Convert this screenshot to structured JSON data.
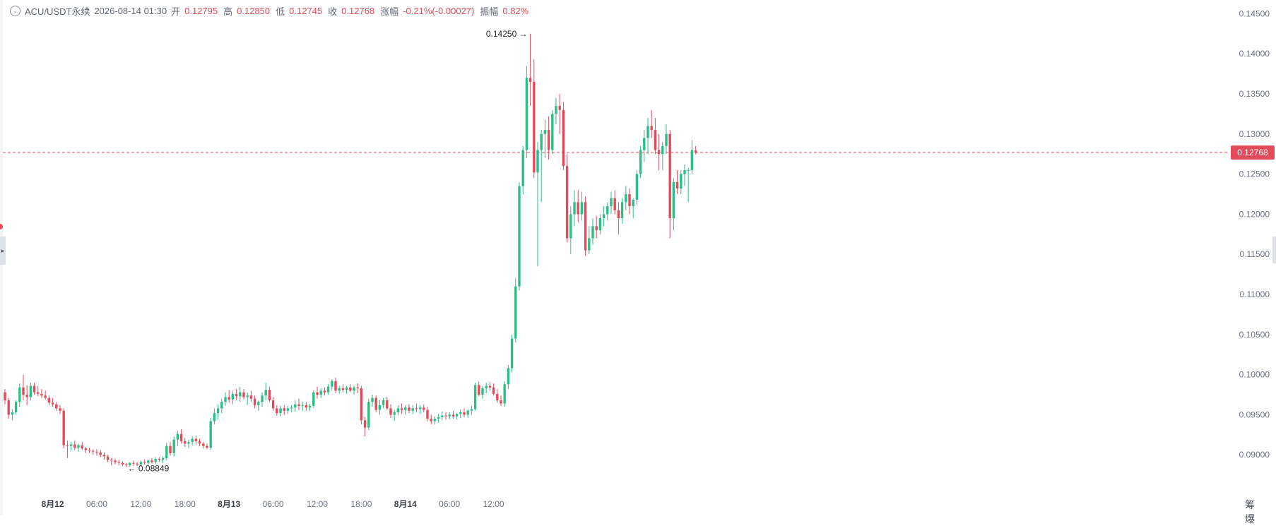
{
  "header": {
    "symbol": "ACU/USDT永续",
    "datetime": "2026-08-14 01:30",
    "open_label": "开",
    "open_value": "0.12795",
    "high_label": "高",
    "high_value": "0.12850",
    "low_label": "低",
    "low_value": "0.12745",
    "close_label": "收",
    "close_value": "0.12768",
    "change_label": "涨幅",
    "change_value": "-0.21%(-0.00027)",
    "amplitude_label": "振幅",
    "amplitude_value": "0.82%"
  },
  "corner": {
    "label": "筹 爆"
  },
  "colors": {
    "up": "#2ebd85",
    "down": "#e34b5b",
    "price_line": "#e34b5b",
    "axis_text": "#6b7280"
  },
  "chart_data": {
    "type": "candlestick",
    "interval": "30m",
    "ylim": [
      0.0865,
      0.146
    ],
    "y_ticks": [
      "0.09000",
      "0.09500",
      "0.10000",
      "0.10500",
      "0.11000",
      "0.11500",
      "0.12000",
      "0.12500",
      "0.13000",
      "0.13500",
      "0.14000",
      "0.14500"
    ],
    "x_ticks": [
      "8月12",
      "06:00",
      "12:00",
      "18:00",
      "8月13",
      "06:00",
      "12:00",
      "18:00",
      "8月14",
      "06:00",
      "12:00"
    ],
    "bold_ticks": [
      "8月12",
      "8月13",
      "8月14"
    ],
    "x_start": "2026-08-11 17:30",
    "last_price": "0.12768",
    "annotations": [
      {
        "text": "0.14250",
        "value": 0.1425,
        "type": "high"
      },
      {
        "text": "0.08849",
        "value": 0.08849,
        "type": "low"
      }
    ],
    "ohlc": [
      [
        0.0978,
        0.0982,
        0.0963,
        0.0968
      ],
      [
        0.0968,
        0.0971,
        0.0945,
        0.095
      ],
      [
        0.095,
        0.0957,
        0.0943,
        0.0953
      ],
      [
        0.0953,
        0.0968,
        0.095,
        0.0966
      ],
      [
        0.0966,
        0.0989,
        0.096,
        0.0984
      ],
      [
        0.0984,
        0.1,
        0.0968,
        0.0975
      ],
      [
        0.0975,
        0.0987,
        0.0962,
        0.0972
      ],
      [
        0.0972,
        0.099,
        0.0968,
        0.0986
      ],
      [
        0.0986,
        0.099,
        0.0975,
        0.0978
      ],
      [
        0.0978,
        0.0986,
        0.0973,
        0.0976
      ],
      [
        0.0976,
        0.0982,
        0.0971,
        0.0974
      ],
      [
        0.0974,
        0.098,
        0.0969,
        0.0971
      ],
      [
        0.0971,
        0.0974,
        0.0962,
        0.0965
      ],
      [
        0.0965,
        0.0971,
        0.096,
        0.0963
      ],
      [
        0.0963,
        0.0966,
        0.0955,
        0.0958
      ],
      [
        0.0958,
        0.0962,
        0.0951,
        0.0955
      ],
      [
        0.0955,
        0.0958,
        0.0908,
        0.0912
      ],
      [
        0.0912,
        0.0918,
        0.0896,
        0.0911
      ],
      [
        0.0911,
        0.0916,
        0.0905,
        0.0913
      ],
      [
        0.0913,
        0.0918,
        0.0906,
        0.0909
      ],
      [
        0.0909,
        0.0914,
        0.0904,
        0.0912
      ],
      [
        0.0912,
        0.0916,
        0.0906,
        0.0908
      ],
      [
        0.0908,
        0.091,
        0.0902,
        0.0906
      ],
      [
        0.0906,
        0.0909,
        0.0902,
        0.0905
      ],
      [
        0.0905,
        0.0907,
        0.09,
        0.0904
      ],
      [
        0.0904,
        0.0907,
        0.0899,
        0.0903
      ],
      [
        0.0903,
        0.0906,
        0.0897,
        0.09
      ],
      [
        0.09,
        0.0903,
        0.0894,
        0.0898
      ],
      [
        0.0898,
        0.09,
        0.0891,
        0.0894
      ],
      [
        0.0894,
        0.0896,
        0.0887,
        0.0893
      ],
      [
        0.0893,
        0.0895,
        0.0888,
        0.0891
      ],
      [
        0.0891,
        0.0894,
        0.0887,
        0.089
      ],
      [
        0.089,
        0.0892,
        0.0886,
        0.0888
      ],
      [
        0.0888,
        0.089,
        0.0885,
        0.0887
      ],
      [
        0.0887,
        0.0891,
        0.0885,
        0.089
      ],
      [
        0.089,
        0.0893,
        0.0886,
        0.0889
      ],
      [
        0.0889,
        0.0891,
        0.0886,
        0.0888
      ],
      [
        0.0888,
        0.0893,
        0.0885,
        0.0891
      ],
      [
        0.0891,
        0.0894,
        0.0888,
        0.089
      ],
      [
        0.089,
        0.0894,
        0.0887,
        0.0893
      ],
      [
        0.0893,
        0.0896,
        0.0889,
        0.0891
      ],
      [
        0.0891,
        0.0897,
        0.0889,
        0.0895
      ],
      [
        0.0895,
        0.0897,
        0.0891,
        0.0894
      ],
      [
        0.0894,
        0.0898,
        0.089,
        0.0896
      ],
      [
        0.0896,
        0.0915,
        0.0893,
        0.0911
      ],
      [
        0.0911,
        0.0916,
        0.0899,
        0.0902
      ],
      [
        0.0902,
        0.0923,
        0.0898,
        0.0919
      ],
      [
        0.0919,
        0.093,
        0.0911,
        0.0926
      ],
      [
        0.0926,
        0.0932,
        0.0914,
        0.0917
      ],
      [
        0.0917,
        0.0921,
        0.091,
        0.0914
      ],
      [
        0.0914,
        0.0919,
        0.0908,
        0.0916
      ],
      [
        0.0916,
        0.0923,
        0.0912,
        0.092
      ],
      [
        0.092,
        0.0924,
        0.0913,
        0.0917
      ],
      [
        0.0917,
        0.092,
        0.0911,
        0.0914
      ],
      [
        0.0914,
        0.0916,
        0.0908,
        0.0911
      ],
      [
        0.0911,
        0.0914,
        0.0907,
        0.0909
      ],
      [
        0.0909,
        0.0946,
        0.0906,
        0.0942
      ],
      [
        0.0942,
        0.0958,
        0.0938,
        0.0952
      ],
      [
        0.0952,
        0.0963,
        0.0944,
        0.0958
      ],
      [
        0.0958,
        0.097,
        0.0952,
        0.0966
      ],
      [
        0.0966,
        0.0978,
        0.0961,
        0.0972
      ],
      [
        0.0972,
        0.0981,
        0.0965,
        0.0969
      ],
      [
        0.0969,
        0.098,
        0.0963,
        0.0976
      ],
      [
        0.0976,
        0.0982,
        0.0968,
        0.0973
      ],
      [
        0.0973,
        0.0985,
        0.0966,
        0.0978
      ],
      [
        0.0978,
        0.0982,
        0.0969,
        0.0972
      ],
      [
        0.0972,
        0.0978,
        0.0962,
        0.0974
      ],
      [
        0.0974,
        0.098,
        0.0966,
        0.097
      ],
      [
        0.097,
        0.0974,
        0.0958,
        0.0962
      ],
      [
        0.0962,
        0.0968,
        0.0955,
        0.0966
      ],
      [
        0.0966,
        0.0978,
        0.096,
        0.0974
      ],
      [
        0.0974,
        0.099,
        0.0968,
        0.0981
      ],
      [
        0.0981,
        0.0985,
        0.0966,
        0.0968
      ],
      [
        0.0968,
        0.0972,
        0.0955,
        0.0958
      ],
      [
        0.0958,
        0.0962,
        0.0949,
        0.0952
      ],
      [
        0.0952,
        0.0961,
        0.0948,
        0.0958
      ],
      [
        0.0958,
        0.0962,
        0.095,
        0.0955
      ],
      [
        0.0955,
        0.0961,
        0.0951,
        0.0958
      ],
      [
        0.0958,
        0.0962,
        0.0953,
        0.0959
      ],
      [
        0.0959,
        0.0968,
        0.0954,
        0.0963
      ],
      [
        0.0963,
        0.097,
        0.0956,
        0.0961
      ],
      [
        0.0961,
        0.0966,
        0.0955,
        0.0962
      ],
      [
        0.0962,
        0.0966,
        0.0955,
        0.0959
      ],
      [
        0.0959,
        0.0963,
        0.0955,
        0.0961
      ],
      [
        0.0961,
        0.098,
        0.0958,
        0.0978
      ],
      [
        0.0978,
        0.0985,
        0.097,
        0.0975
      ],
      [
        0.0975,
        0.0983,
        0.0971,
        0.098
      ],
      [
        0.098,
        0.0984,
        0.0974,
        0.0978
      ],
      [
        0.0978,
        0.0988,
        0.0975,
        0.0985
      ],
      [
        0.0985,
        0.0994,
        0.098,
        0.0992
      ],
      [
        0.0992,
        0.0996,
        0.0977,
        0.098
      ],
      [
        0.098,
        0.0986,
        0.0976,
        0.0983
      ],
      [
        0.0983,
        0.0988,
        0.0978,
        0.0981
      ],
      [
        0.0981,
        0.0986,
        0.0976,
        0.0984
      ],
      [
        0.0984,
        0.0988,
        0.0978,
        0.098
      ],
      [
        0.098,
        0.0986,
        0.0975,
        0.0984
      ],
      [
        0.0984,
        0.0989,
        0.0977,
        0.0983
      ],
      [
        0.0983,
        0.0986,
        0.0938,
        0.0943
      ],
      [
        0.0943,
        0.0947,
        0.0923,
        0.0934
      ],
      [
        0.0934,
        0.097,
        0.0931,
        0.0966
      ],
      [
        0.0966,
        0.0975,
        0.096,
        0.0971
      ],
      [
        0.0971,
        0.0974,
        0.0953,
        0.0956
      ],
      [
        0.0956,
        0.0968,
        0.095,
        0.0962
      ],
      [
        0.0962,
        0.0971,
        0.0958,
        0.0968
      ],
      [
        0.0968,
        0.0972,
        0.0956,
        0.0958
      ],
      [
        0.0958,
        0.0963,
        0.0946,
        0.095
      ],
      [
        0.095,
        0.0956,
        0.0942,
        0.0953
      ],
      [
        0.0953,
        0.0962,
        0.0949,
        0.0958
      ],
      [
        0.0958,
        0.0964,
        0.0951,
        0.0956
      ],
      [
        0.0956,
        0.0962,
        0.095,
        0.0959
      ],
      [
        0.0959,
        0.0963,
        0.0952,
        0.0955
      ],
      [
        0.0955,
        0.0962,
        0.0951,
        0.0958
      ],
      [
        0.0958,
        0.0964,
        0.0953,
        0.0957
      ],
      [
        0.0957,
        0.0962,
        0.0951,
        0.0959
      ],
      [
        0.0959,
        0.0963,
        0.0953,
        0.0956
      ],
      [
        0.0956,
        0.096,
        0.0942,
        0.0945
      ],
      [
        0.0945,
        0.095,
        0.0938,
        0.0942
      ],
      [
        0.0942,
        0.0948,
        0.0938,
        0.0945
      ],
      [
        0.0945,
        0.0951,
        0.094,
        0.0947
      ],
      [
        0.0947,
        0.0954,
        0.0943,
        0.0949
      ],
      [
        0.0949,
        0.0953,
        0.0944,
        0.0948
      ],
      [
        0.0948,
        0.0953,
        0.0944,
        0.095
      ],
      [
        0.095,
        0.0955,
        0.0945,
        0.0948
      ],
      [
        0.0948,
        0.0952,
        0.0944,
        0.0951
      ],
      [
        0.0951,
        0.0957,
        0.0946,
        0.0953
      ],
      [
        0.0953,
        0.0958,
        0.0947,
        0.095
      ],
      [
        0.095,
        0.0957,
        0.0946,
        0.0955
      ],
      [
        0.0955,
        0.0961,
        0.095,
        0.0957
      ],
      [
        0.0957,
        0.099,
        0.0955,
        0.0987
      ],
      [
        0.0987,
        0.0991,
        0.0973,
        0.0975
      ],
      [
        0.0975,
        0.0986,
        0.097,
        0.0983
      ],
      [
        0.0983,
        0.099,
        0.0977,
        0.0986
      ],
      [
        0.0986,
        0.0991,
        0.098,
        0.0984
      ],
      [
        0.0984,
        0.0989,
        0.0974,
        0.0976
      ],
      [
        0.0976,
        0.0982,
        0.0965,
        0.0968
      ],
      [
        0.0968,
        0.0974,
        0.0961,
        0.0964
      ],
      [
        0.0964,
        0.0992,
        0.096,
        0.0988
      ],
      [
        0.0988,
        0.1012,
        0.0982,
        0.1008
      ],
      [
        0.1008,
        0.105,
        0.1003,
        0.1045
      ],
      [
        0.1045,
        0.112,
        0.104,
        0.111
      ],
      [
        0.111,
        0.124,
        0.1105,
        0.1235
      ],
      [
        0.1235,
        0.1285,
        0.1225,
        0.128
      ],
      [
        0.128,
        0.1385,
        0.127,
        0.137
      ],
      [
        0.137,
        0.1425,
        0.1335,
        0.1365
      ],
      [
        0.1365,
        0.1393,
        0.1245,
        0.1252
      ],
      [
        0.1252,
        0.129,
        0.1135,
        0.128
      ],
      [
        0.128,
        0.1305,
        0.1215,
        0.13
      ],
      [
        0.13,
        0.1318,
        0.127,
        0.1305
      ],
      [
        0.1305,
        0.1322,
        0.1268,
        0.128
      ],
      [
        0.128,
        0.133,
        0.1275,
        0.1325
      ],
      [
        0.1325,
        0.1345,
        0.1312,
        0.1335
      ],
      [
        0.1335,
        0.135,
        0.13,
        0.133
      ],
      [
        0.133,
        0.134,
        0.1255,
        0.126
      ],
      [
        0.126,
        0.1275,
        0.1165,
        0.117
      ],
      [
        0.117,
        0.121,
        0.115,
        0.12
      ],
      [
        0.12,
        0.123,
        0.1185,
        0.1215
      ],
      [
        0.1215,
        0.123,
        0.119,
        0.12
      ],
      [
        0.12,
        0.1228,
        0.1192,
        0.1215
      ],
      [
        0.1215,
        0.1222,
        0.1148,
        0.1155
      ],
      [
        0.1155,
        0.1185,
        0.115,
        0.117
      ],
      [
        0.117,
        0.1195,
        0.1162,
        0.1185
      ],
      [
        0.1185,
        0.1198,
        0.117,
        0.118
      ],
      [
        0.118,
        0.12,
        0.1175,
        0.1195
      ],
      [
        0.1195,
        0.121,
        0.1185,
        0.12
      ],
      [
        0.12,
        0.1215,
        0.1192,
        0.121
      ],
      [
        0.121,
        0.1228,
        0.12,
        0.122
      ],
      [
        0.122,
        0.123,
        0.12,
        0.1205
      ],
      [
        0.1205,
        0.1215,
        0.1175,
        0.1195
      ],
      [
        0.1195,
        0.122,
        0.1188,
        0.1215
      ],
      [
        0.1215,
        0.1235,
        0.1205,
        0.1225
      ],
      [
        0.1225,
        0.1232,
        0.12,
        0.121
      ],
      [
        0.121,
        0.122,
        0.1195,
        0.1218
      ],
      [
        0.1218,
        0.1255,
        0.1212,
        0.125
      ],
      [
        0.125,
        0.1285,
        0.1245,
        0.128
      ],
      [
        0.128,
        0.1305,
        0.1265,
        0.1295
      ],
      [
        0.1295,
        0.132,
        0.1275,
        0.131
      ],
      [
        0.131,
        0.133,
        0.1295,
        0.1305
      ],
      [
        0.1305,
        0.132,
        0.1275,
        0.128
      ],
      [
        0.128,
        0.13,
        0.1255,
        0.1275
      ],
      [
        0.1275,
        0.129,
        0.1255,
        0.1285
      ],
      [
        0.1285,
        0.1312,
        0.1275,
        0.13
      ],
      [
        0.13,
        0.1305,
        0.117,
        0.1195
      ],
      [
        0.1195,
        0.1245,
        0.118,
        0.124
      ],
      [
        0.124,
        0.1255,
        0.1225,
        0.1232
      ],
      [
        0.1232,
        0.1255,
        0.1225,
        0.125
      ],
      [
        0.125,
        0.1262,
        0.1235,
        0.1255
      ],
      [
        0.1255,
        0.1258,
        0.1215,
        0.1255
      ],
      [
        0.1255,
        0.1292,
        0.125,
        0.128
      ],
      [
        0.12795,
        0.1285,
        0.12745,
        0.12768
      ]
    ]
  }
}
